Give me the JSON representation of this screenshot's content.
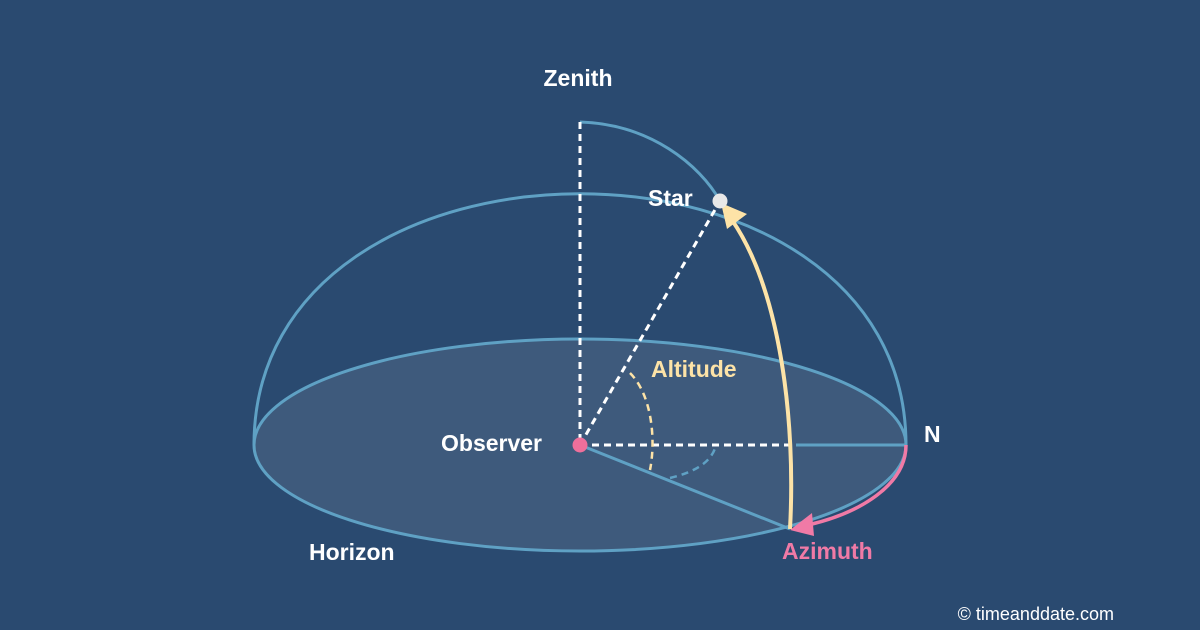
{
  "labels": {
    "zenith": "Zenith",
    "star": "Star",
    "altitude": "Altitude",
    "observer": "Observer",
    "north": "N",
    "horizon": "Horizon",
    "azimuth": "Azimuth"
  },
  "credit": "© timeanddate.com",
  "colors": {
    "background": "#2a4a70",
    "dome_stroke": "#5fa1c4",
    "horizon_fill": "#3e5a7c",
    "label_white": "#ffffff",
    "altitude_color": "#fde3a7",
    "azimuth_color": "#f07aa6",
    "star_color": "#e8e8e8",
    "observer_color": "#ee6f9b"
  }
}
